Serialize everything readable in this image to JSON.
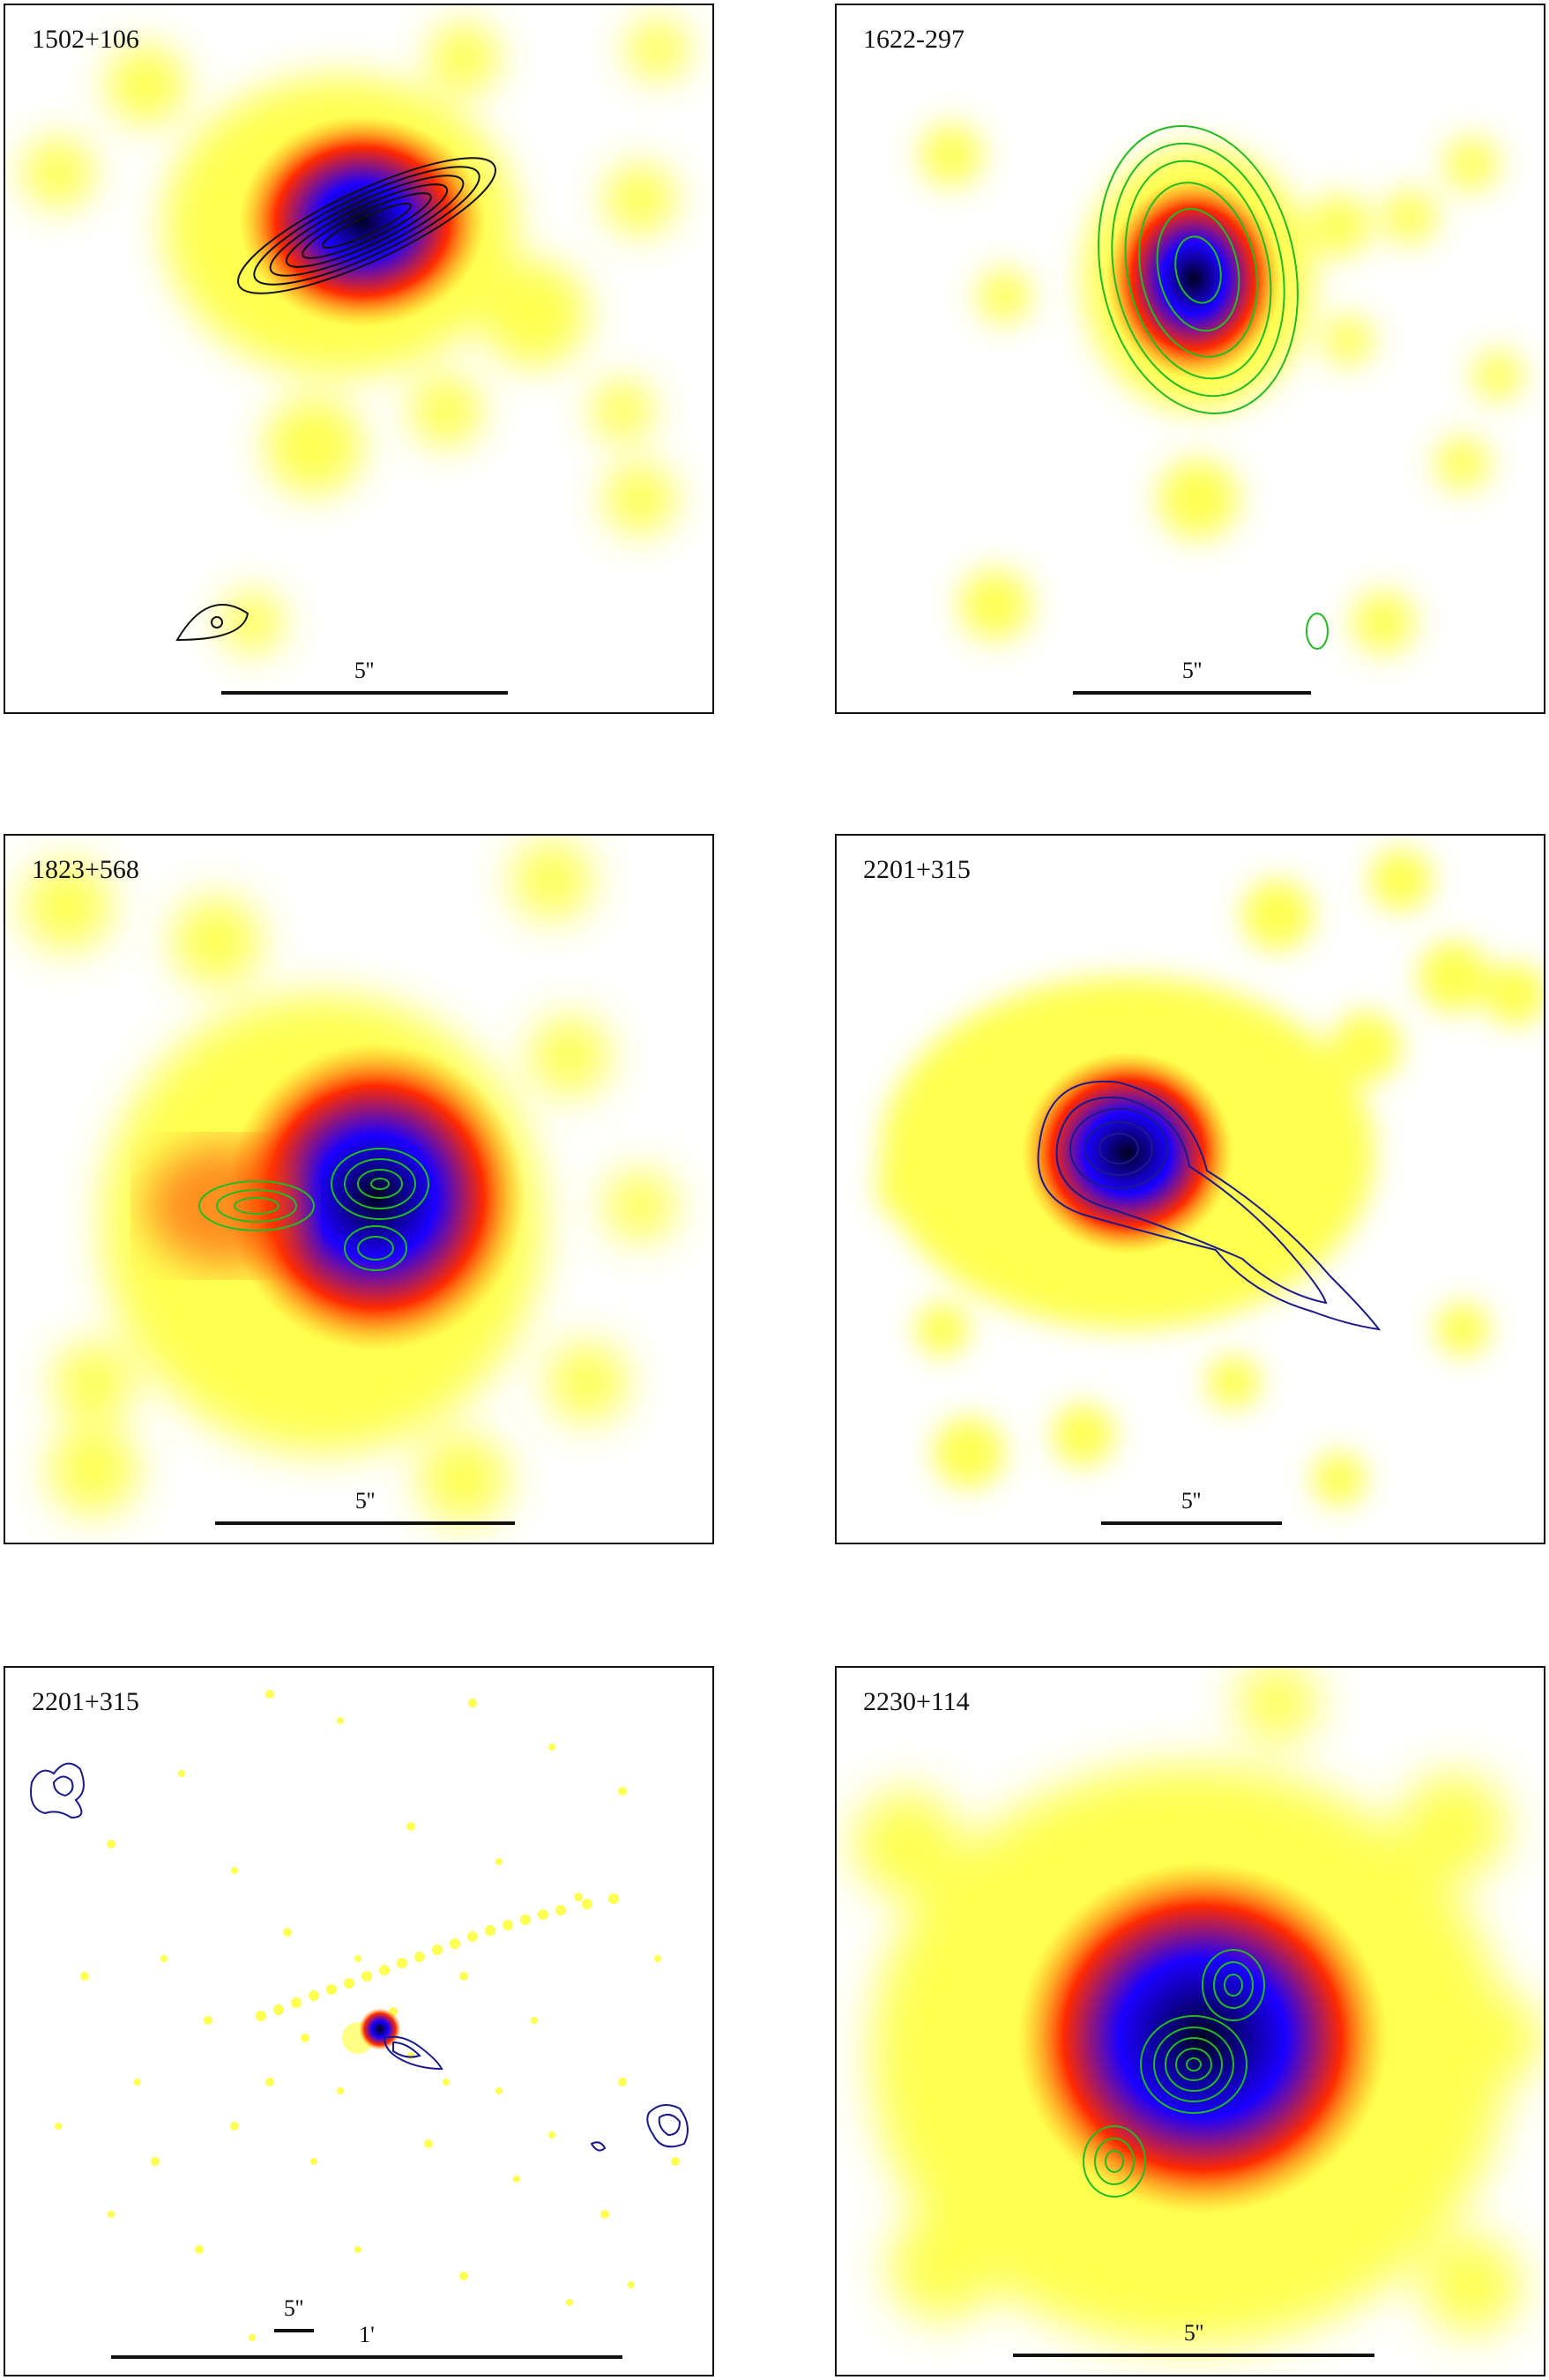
{
  "panels": [
    {
      "id": "p1",
      "label": "1502+106",
      "scale_label": "5''"
    },
    {
      "id": "p2",
      "label": "1622-297",
      "scale_label": "5''"
    },
    {
      "id": "p3",
      "label": "1823+568",
      "scale_label": "5''"
    },
    {
      "id": "p4",
      "label": "2201+315",
      "scale_label": "5''"
    },
    {
      "id": "p5",
      "label": "2201+315",
      "scale_label": "1'",
      "scale_label_small": "5''"
    },
    {
      "id": "p6",
      "label": "2230+114",
      "scale_label": "5''"
    }
  ],
  "colors": {
    "low": "#ffff33",
    "mid": "#ff2a00",
    "high": "#1a00ff",
    "peak": "#000022",
    "contour_green": "#22bb22",
    "contour_blue": "#1a1a8c",
    "contour_black": "#111111"
  }
}
